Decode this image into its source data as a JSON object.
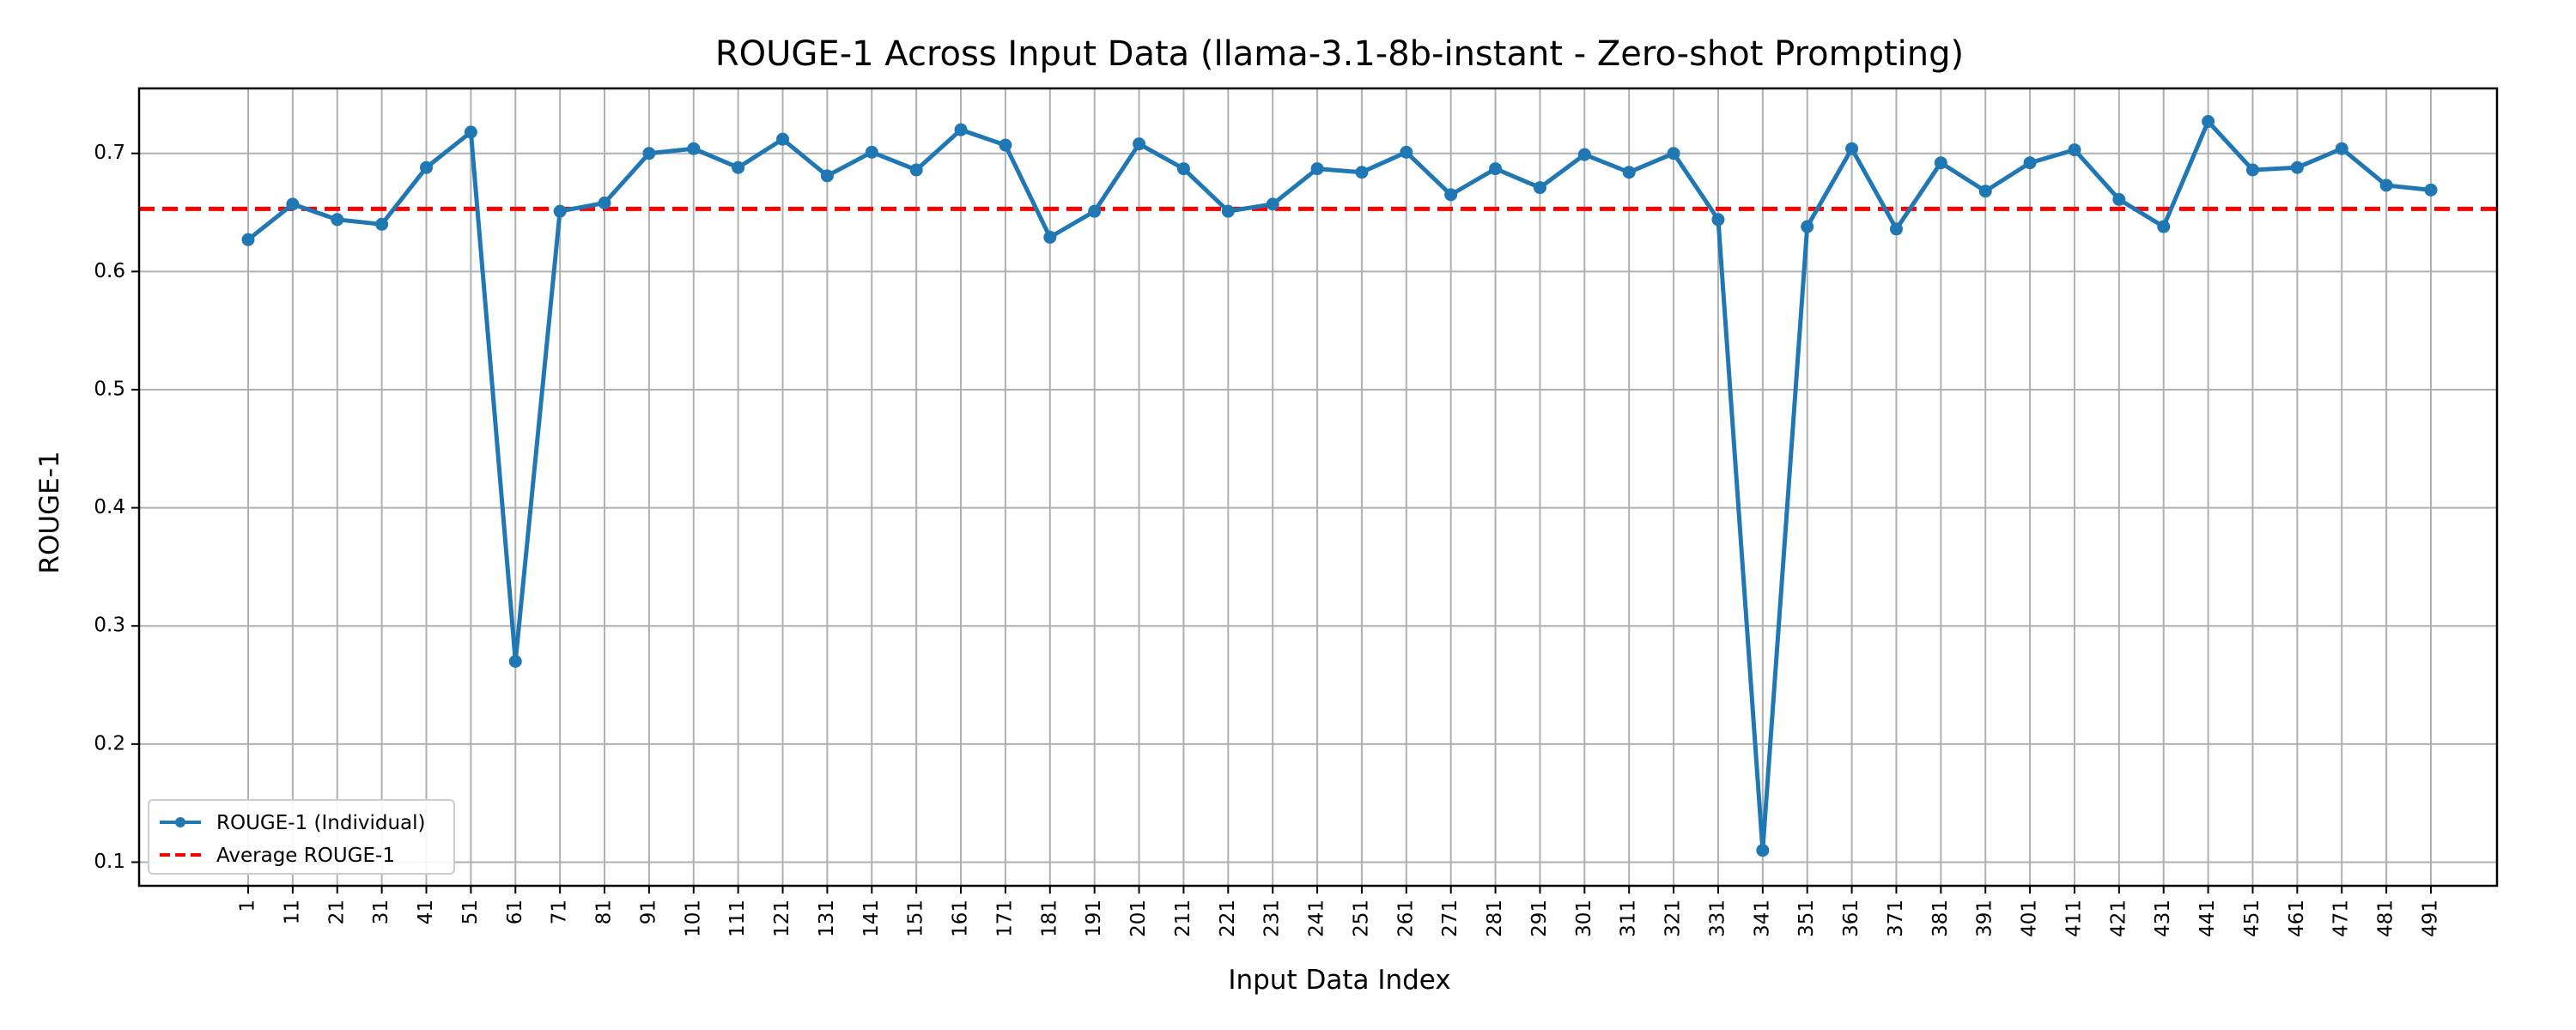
{
  "chart_data": {
    "type": "line",
    "title": "ROUGE-1 Across Input Data (llama-3.1-8b-instant - Zero-shot Prompting)",
    "xlabel": "Input Data Index",
    "ylabel": "ROUGE-1",
    "x": [
      "1",
      "11",
      "21",
      "31",
      "41",
      "51",
      "61",
      "71",
      "81",
      "91",
      "101",
      "111",
      "121",
      "131",
      "141",
      "151",
      "161",
      "171",
      "181",
      "191",
      "201",
      "211",
      "221",
      "231",
      "241",
      "251",
      "261",
      "271",
      "281",
      "291",
      "301",
      "311",
      "321",
      "331",
      "341",
      "351",
      "361",
      "371",
      "381",
      "391",
      "401",
      "411",
      "421",
      "431",
      "441",
      "451",
      "461",
      "471",
      "481",
      "491"
    ],
    "series": [
      {
        "name": "ROUGE-1 (Individual)",
        "color": "#1f77b4",
        "values": [
          0.627,
          0.657,
          0.644,
          0.64,
          0.688,
          0.718,
          0.27,
          0.651,
          0.658,
          0.7,
          0.704,
          0.688,
          0.712,
          0.681,
          0.701,
          0.686,
          0.72,
          0.707,
          0.629,
          0.651,
          0.708,
          0.687,
          0.651,
          0.657,
          0.687,
          0.684,
          0.701,
          0.665,
          0.687,
          0.671,
          0.699,
          0.684,
          0.7,
          0.644,
          0.11,
          0.638,
          0.704,
          0.636,
          0.692,
          0.668,
          0.692,
          0.703,
          0.661,
          0.638,
          0.727,
          0.686,
          0.688,
          0.704,
          0.673,
          0.669
        ]
      }
    ],
    "average": {
      "name": "Average ROUGE-1",
      "value": 0.653,
      "color": "#ff0000"
    },
    "ylim": [
      0.08,
      0.755
    ],
    "yticks": [
      0.1,
      0.2,
      0.3,
      0.4,
      0.5,
      0.6,
      0.7
    ],
    "ytick_labels": [
      "0.1",
      "0.2",
      "0.3",
      "0.4",
      "0.5",
      "0.6",
      "0.7"
    ],
    "grid": true,
    "legend_position": "lower-left"
  }
}
